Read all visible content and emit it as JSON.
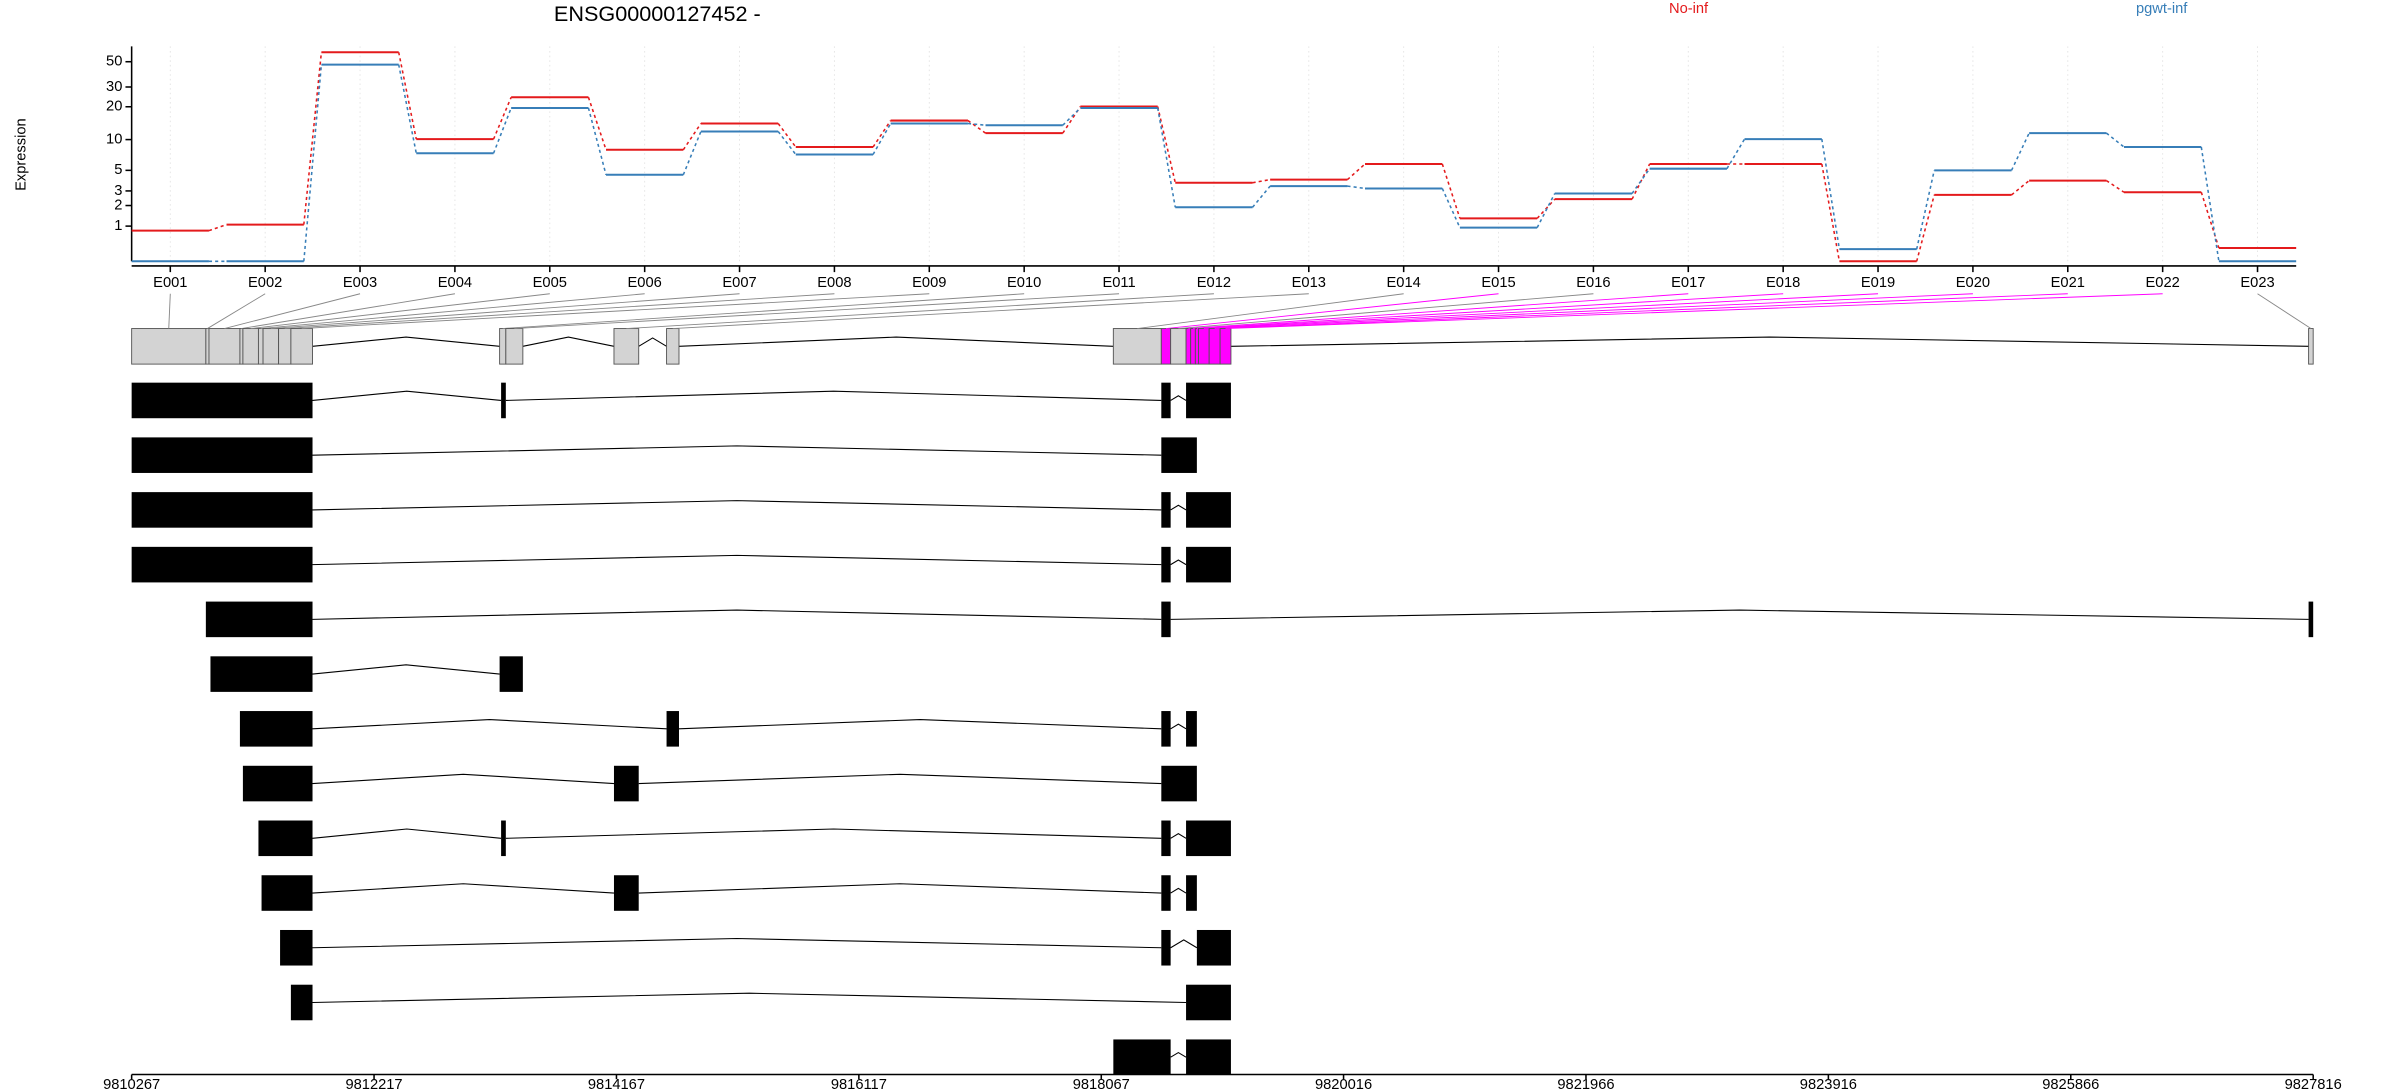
{
  "chart_data": [
    {
      "type": "line",
      "title": "ENSG00000127452 -",
      "ylabel": "Expression",
      "categories": [
        "E001",
        "E002",
        "E003",
        "E004",
        "E005",
        "E006",
        "E007",
        "E008",
        "E009",
        "E010",
        "E011",
        "E012",
        "E013",
        "E014",
        "E015",
        "E016",
        "E017",
        "E018",
        "E019",
        "E020",
        "E021",
        "E022",
        "E023"
      ],
      "series": [
        {
          "name": "No-inf",
          "color": "#e41a1c",
          "values": [
            0.83,
            1.06,
            60.5,
            10.1,
            24.3,
            8.0,
            14.1,
            8.5,
            15.0,
            11.5,
            20.1,
            3.7,
            4.0,
            5.8,
            1.33,
            2.4,
            5.8,
            5.8,
            0,
            2.7,
            3.9,
            2.9,
            0.3
          ]
        },
        {
          "name": "pgwt-inf",
          "color": "#377eb8",
          "values": [
            0,
            0,
            47.2,
            7.4,
            19.5,
            4.5,
            11.9,
            7.2,
            14.1,
            13.6,
            19.5,
            1.9,
            3.4,
            3.2,
            0.94,
            2.8,
            5.2,
            10.1,
            0.27,
            5.0,
            11.5,
            8.5,
            0
          ]
        }
      ],
      "yscale": "log1p",
      "ylim": [
        0,
        68
      ],
      "yticks": [
        1,
        2,
        3,
        5,
        10,
        20,
        30,
        50
      ],
      "grid": true
    },
    {
      "type": "gene-model",
      "xlim": [
        9810267,
        9827816
      ],
      "xticks": [
        9810267,
        9812217,
        9814167,
        9816117,
        9818067,
        9820016,
        9821966,
        9823916,
        9825866,
        9827816
      ],
      "exons": {
        "start": [
          9810267,
          9810864,
          9810889,
          9811138,
          9811162,
          9811287,
          9811324,
          9811449,
          9811548,
          9813227,
          9813277,
          9814147,
          9814570,
          9818164,
          9818550,
          9818625,
          9818749,
          9818786,
          9818824,
          9818849,
          9818935,
          9819023,
          9827779
        ],
        "end": [
          9810864,
          9810889,
          9811138,
          9811162,
          9811287,
          9811324,
          9811449,
          9811548,
          9811722,
          9813277,
          9813414,
          9814346,
          9814670,
          9818550,
          9818625,
          9818749,
          9818786,
          9818824,
          9818849,
          9818935,
          9819023,
          9819110,
          9827816
        ],
        "highlight": [
          false,
          false,
          false,
          false,
          false,
          false,
          false,
          false,
          false,
          false,
          false,
          false,
          false,
          false,
          true,
          false,
          true,
          true,
          true,
          true,
          true,
          true,
          false
        ]
      },
      "exon_color": "#d3d3d3",
      "highlight_color": "#ff00ff",
      "transcript_color": "#000000",
      "transcripts": [
        [
          [
            9810267,
            9811722
          ],
          [
            9813239,
            9813277
          ],
          [
            9818550,
            9818625
          ],
          [
            9818749,
            9819110
          ]
        ],
        [
          [
            9810267,
            9811722
          ],
          [
            9818550,
            9818836
          ]
        ],
        [
          [
            9810267,
            9811722
          ],
          [
            9818550,
            9818625
          ],
          [
            9818749,
            9819110
          ]
        ],
        [
          [
            9810267,
            9811722
          ],
          [
            9818550,
            9818625
          ],
          [
            9818749,
            9819110
          ]
        ],
        [
          [
            9810864,
            9811722
          ],
          [
            9818550,
            9818625
          ],
          [
            9827779,
            9827816
          ]
        ],
        [
          [
            9810901,
            9811722
          ],
          [
            9813227,
            9813414
          ]
        ],
        [
          [
            9811138,
            9811722
          ],
          [
            9814570,
            9814670
          ],
          [
            9818550,
            9818625
          ],
          [
            9818749,
            9818836
          ]
        ],
        [
          [
            9811162,
            9811722
          ],
          [
            9814147,
            9814346
          ],
          [
            9818550,
            9818836
          ]
        ],
        [
          [
            9811287,
            9811722
          ],
          [
            9813239,
            9813277
          ],
          [
            9818550,
            9818625
          ],
          [
            9818749,
            9819110
          ]
        ],
        [
          [
            9811312,
            9811722
          ],
          [
            9814147,
            9814346
          ],
          [
            9818550,
            9818625
          ],
          [
            9818749,
            9818836
          ]
        ],
        [
          [
            9811461,
            9811722
          ],
          [
            9818550,
            9818625
          ],
          [
            9818836,
            9819110
          ]
        ],
        [
          [
            9811548,
            9811722
          ],
          [
            9818749,
            9819110
          ]
        ],
        [
          [
            9818164,
            9818625
          ],
          [
            9818749,
            9819110
          ]
        ]
      ]
    }
  ]
}
